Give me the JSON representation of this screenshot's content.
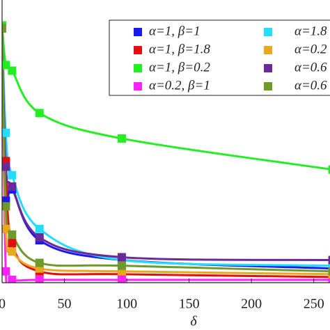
{
  "chart_data": {
    "type": "line",
    "x_label": "δ",
    "x": [
      0,
      3,
      8,
      30,
      96,
      265
    ],
    "xlim": [
      0,
      263
    ],
    "xticks": [
      0,
      50,
      100,
      150,
      200,
      250
    ],
    "ylim": [
      0,
      1
    ],
    "series": [
      {
        "name": "α=1, β=1",
        "color": "#1a1aee",
        "values": [
          0.9,
          0.29,
          0.33,
          0.15,
          0.08,
          0.05
        ]
      },
      {
        "name": "α=1, β=1.8",
        "color": "#e01010",
        "values": [
          0.9,
          0.43,
          0.14,
          0.04,
          0.03,
          0.02
        ]
      },
      {
        "name": "α=1, β=0.2",
        "color": "#22ee22",
        "values": [
          0.91,
          0.77,
          0.75,
          0.6,
          0.51,
          0.4
        ]
      },
      {
        "name": "α=0.2, β=1",
        "color": "#ff22ff",
        "values": [
          0.9,
          0.04,
          0.01,
          0.01,
          0.01,
          0.01
        ]
      },
      {
        "name": "α=1.8",
        "color": "#22ddff",
        "values": [
          0.9,
          0.53,
          0.38,
          0.19,
          0.08,
          0.06
        ]
      },
      {
        "name": "α=0.2",
        "color": "#e8a820",
        "values": [
          0.9,
          0.19,
          0.11,
          0.05,
          0.04,
          0.03
        ]
      },
      {
        "name": "α=0.6",
        "color": "#6a2a9a",
        "values": [
          0.9,
          0.41,
          0.34,
          0.16,
          0.09,
          0.08
        ]
      },
      {
        "name": "α=0.6",
        "color": "#6f9a2a",
        "values": [
          0.9,
          0.27,
          0.17,
          0.07,
          0.06,
          0.04
        ]
      }
    ]
  }
}
